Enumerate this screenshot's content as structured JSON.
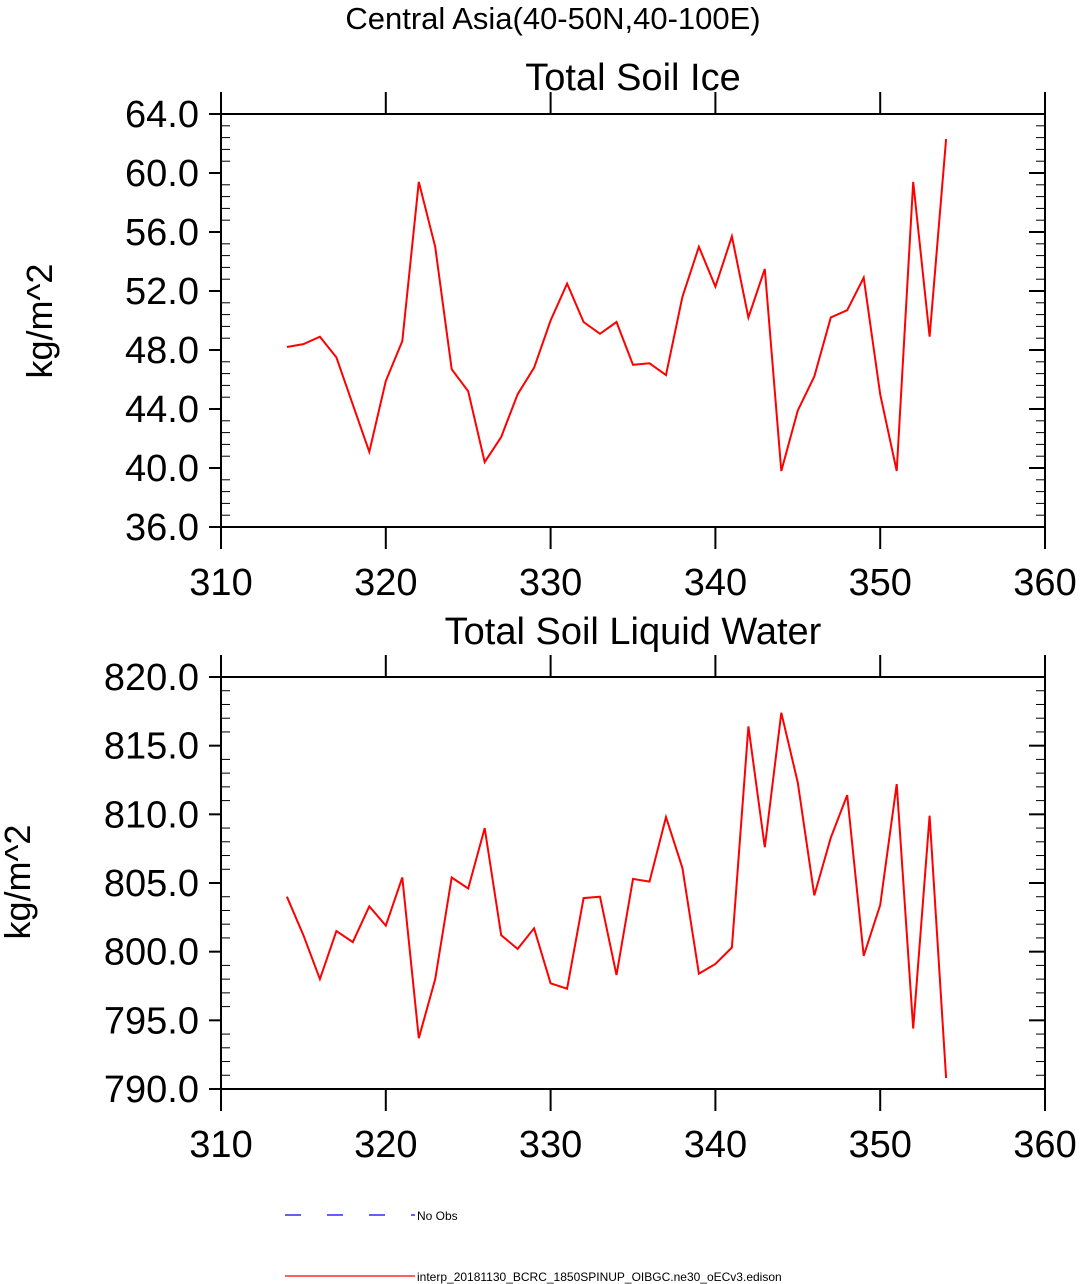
{
  "figure_title": "Central Asia(40-50N,40-100E)",
  "chart_data": [
    {
      "type": "line",
      "title": "Total Soil Ice",
      "xlabel": "",
      "ylabel": "kg/m^2",
      "xlim": [
        310,
        360
      ],
      "ylim": [
        36,
        64
      ],
      "x_ticks": [
        310,
        320,
        330,
        340,
        350,
        360
      ],
      "x_tick_labels": [
        "310",
        "320",
        "330",
        "340",
        "350",
        "360"
      ],
      "y_ticks": [
        36,
        40,
        44,
        48,
        52,
        56,
        60,
        64
      ],
      "y_tick_labels": [
        "36.0",
        "40.0",
        "44.0",
        "48.0",
        "52.0",
        "56.0",
        "60.0",
        "64.0"
      ],
      "x": [
        314,
        315,
        316,
        317,
        318,
        319,
        320,
        321,
        322,
        323,
        324,
        325,
        326,
        327,
        328,
        329,
        330,
        331,
        332,
        333,
        334,
        335,
        336,
        337,
        338,
        339,
        340,
        341,
        342,
        343,
        344,
        345,
        346,
        347,
        348,
        349,
        350,
        351,
        352,
        353,
        354
      ],
      "series": [
        {
          "name": "interp_20181130_BCRC_1850SPINUP_OIBGC.ne30_oECv3.edison",
          "color": "#ff0000",
          "values": [
            48.2,
            48.4,
            48.9,
            47.5,
            44.3,
            41.1,
            45.9,
            48.6,
            59.4,
            55.0,
            46.7,
            45.2,
            40.4,
            42.1,
            45.0,
            46.8,
            50.0,
            52.5,
            49.9,
            49.1,
            49.9,
            47.0,
            47.1,
            46.3,
            51.6,
            55.0,
            52.3,
            55.7,
            50.2,
            53.5,
            39.8,
            43.9,
            46.2,
            50.2,
            50.7,
            52.9,
            45.0,
            39.8,
            59.4,
            48.9,
            62.3
          ]
        }
      ]
    },
    {
      "type": "line",
      "title": "Total Soil Liquid Water",
      "xlabel": "",
      "ylabel": "kg/m^2",
      "xlim": [
        310,
        360
      ],
      "ylim": [
        790,
        820
      ],
      "x_ticks": [
        310,
        320,
        330,
        340,
        350,
        360
      ],
      "x_tick_labels": [
        "310",
        "320",
        "330",
        "340",
        "350",
        "360"
      ],
      "y_ticks": [
        790,
        795,
        800,
        805,
        810,
        815,
        820
      ],
      "y_tick_labels": [
        "790.0",
        "795.0",
        "800.0",
        "805.0",
        "810.0",
        "815.0",
        "820.0"
      ],
      "x": [
        314,
        315,
        316,
        317,
        318,
        319,
        320,
        321,
        322,
        323,
        324,
        325,
        326,
        327,
        328,
        329,
        330,
        331,
        332,
        333,
        334,
        335,
        336,
        337,
        338,
        339,
        340,
        341,
        342,
        343,
        344,
        345,
        346,
        347,
        348,
        349,
        350,
        351,
        352,
        353,
        354
      ],
      "series": [
        {
          "name": "interp_20181130_BCRC_1850SPINUP_OIBGC.ne30_oECv3.edison",
          "color": "#ff0000",
          "values": [
            804.0,
            801.2,
            798.0,
            801.5,
            800.7,
            803.3,
            801.9,
            805.4,
            793.7,
            798.0,
            805.4,
            804.6,
            809.0,
            801.2,
            800.2,
            801.7,
            797.7,
            797.3,
            803.9,
            804.0,
            798.3,
            805.3,
            805.1,
            809.8,
            806.1,
            798.4,
            799.1,
            800.3,
            816.4,
            807.6,
            817.4,
            812.3,
            804.1,
            808.3,
            811.4,
            799.7,
            803.4,
            812.2,
            794.4,
            809.9,
            790.8
          ]
        }
      ]
    }
  ],
  "legend": [
    {
      "label": "No Obs",
      "color": "#0000ff",
      "style": "dashed"
    },
    {
      "label": "interp_20181130_BCRC_1850SPINUP_OIBGC.ne30_oECv3.edison",
      "color": "#ff0000",
      "style": "solid"
    }
  ]
}
